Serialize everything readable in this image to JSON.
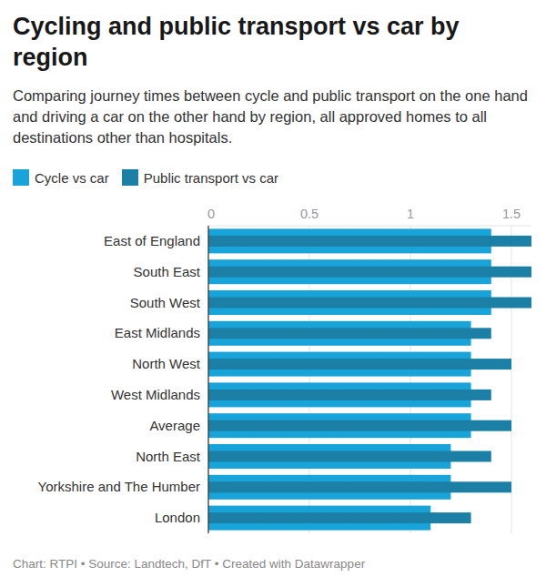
{
  "chart_data": {
    "type": "bar",
    "orientation": "horizontal",
    "title": "Cycling and public transport vs car by region",
    "subtitle": "Comparing journey times between cycle and public transport on the one hand and driving a car on the other hand by region, all approved homes to all destinations other than hospitals.",
    "source": "Chart: RTPI • Source: Landtech, DfT • Created with Datawrapper",
    "categories": [
      "East of England",
      "South East",
      "South West",
      "East Midlands",
      "North West",
      "West Midlands",
      "Average",
      "North East",
      "Yorkshire and The Humber",
      "London"
    ],
    "series": [
      {
        "name": "Cycle vs car",
        "color": "#18a4d8",
        "values": [
          1.4,
          1.4,
          1.4,
          1.3,
          1.3,
          1.3,
          1.3,
          1.2,
          1.2,
          1.1
        ]
      },
      {
        "name": "Public transport vs car",
        "color": "#1b7fa6",
        "values": [
          1.6,
          1.6,
          1.6,
          1.4,
          1.5,
          1.4,
          1.5,
          1.4,
          1.5,
          1.3
        ]
      }
    ],
    "xlim": [
      0,
      1.6
    ],
    "xticks": [
      0,
      0.5,
      1,
      1.5
    ],
    "grid": true,
    "legend": "top-left"
  }
}
